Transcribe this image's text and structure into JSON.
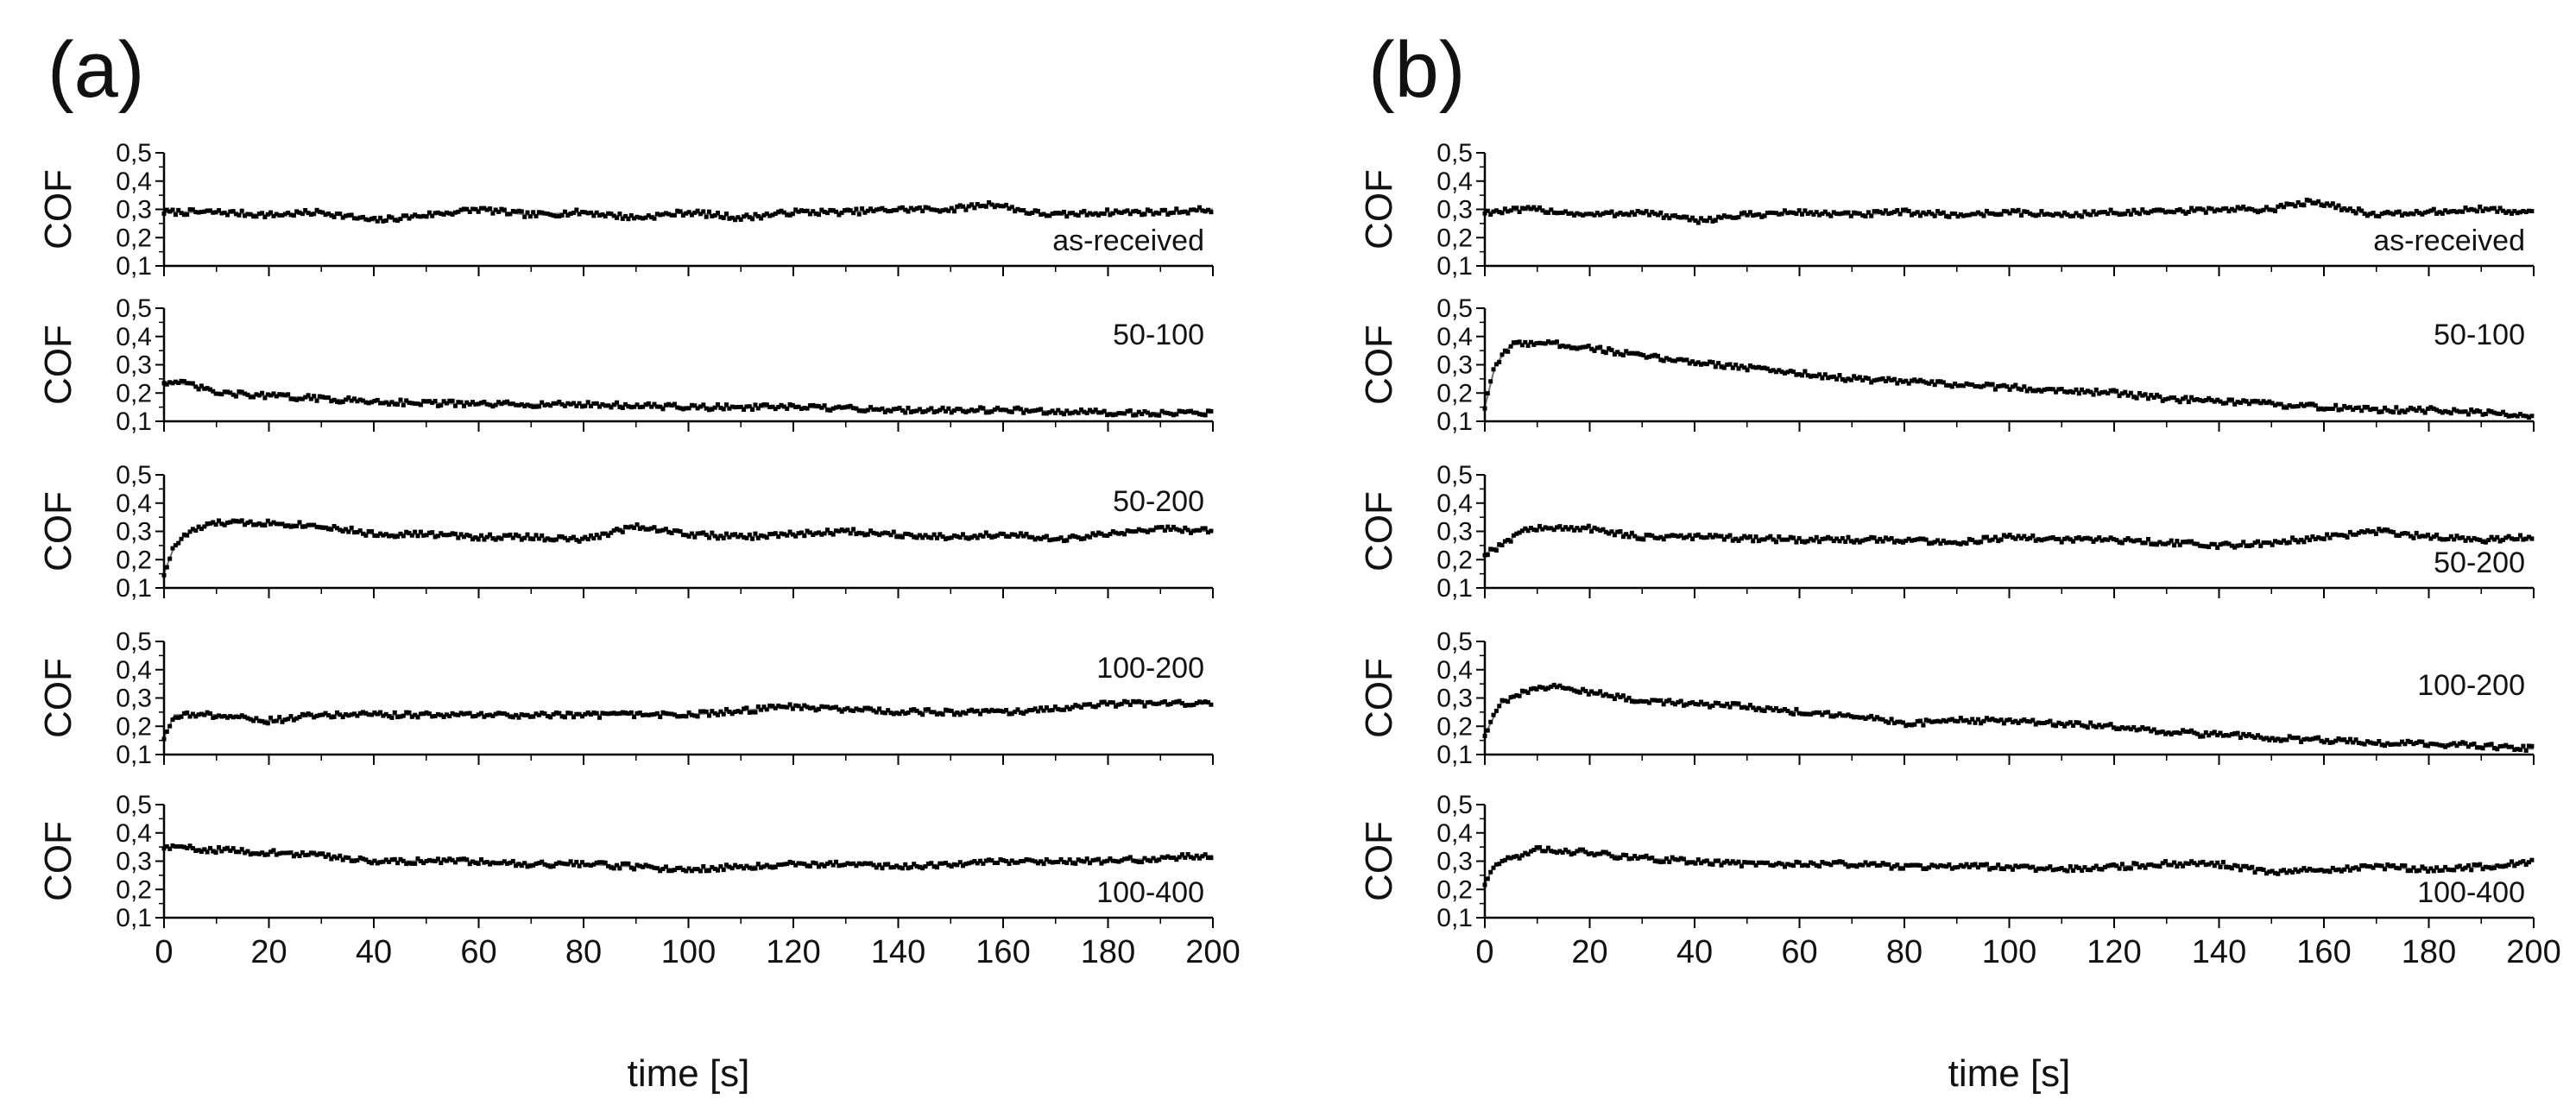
{
  "chart_data": [
    {
      "type": "line",
      "panel_label": "(a)",
      "xlabel": "time [s]",
      "ylabel": "COF",
      "xlim": [
        0,
        200
      ],
      "ylim": [
        0.1,
        0.5
      ],
      "xticks": [
        "0",
        "20",
        "40",
        "60",
        "80",
        "100",
        "120",
        "140",
        "160",
        "180",
        "200"
      ],
      "yticks": [
        "0,1",
        "0,2",
        "0,3",
        "0,4",
        "0,5"
      ],
      "subplots": [
        {
          "label": "as-received",
          "label_pos": "bottom-right",
          "points": [
            [
              0,
              0.29
            ],
            [
              10,
              0.29
            ],
            [
              20,
              0.28
            ],
            [
              30,
              0.29
            ],
            [
              40,
              0.26
            ],
            [
              50,
              0.28
            ],
            [
              60,
              0.3
            ],
            [
              70,
              0.28
            ],
            [
              80,
              0.29
            ],
            [
              90,
              0.27
            ],
            [
              100,
              0.29
            ],
            [
              110,
              0.27
            ],
            [
              120,
              0.29
            ],
            [
              130,
              0.29
            ],
            [
              140,
              0.3
            ],
            [
              150,
              0.3
            ],
            [
              158,
              0.32
            ],
            [
              165,
              0.29
            ],
            [
              170,
              0.28
            ],
            [
              180,
              0.29
            ],
            [
              190,
              0.29
            ],
            [
              200,
              0.3
            ]
          ]
        },
        {
          "label": "50-100",
          "label_pos": "top-right",
          "points": [
            [
              0,
              0.24
            ],
            [
              5,
              0.23
            ],
            [
              10,
              0.2
            ],
            [
              20,
              0.19
            ],
            [
              30,
              0.18
            ],
            [
              40,
              0.17
            ],
            [
              60,
              0.16
            ],
            [
              80,
              0.16
            ],
            [
              100,
              0.15
            ],
            [
              120,
              0.15
            ],
            [
              140,
              0.14
            ],
            [
              160,
              0.14
            ],
            [
              180,
              0.13
            ],
            [
              200,
              0.13
            ]
          ]
        },
        {
          "label": "50-200",
          "label_pos": "top-right",
          "points": [
            [
              0,
              0.15
            ],
            [
              2,
              0.25
            ],
            [
              5,
              0.3
            ],
            [
              10,
              0.33
            ],
            [
              20,
              0.33
            ],
            [
              30,
              0.32
            ],
            [
              40,
              0.29
            ],
            [
              50,
              0.29
            ],
            [
              60,
              0.28
            ],
            [
              70,
              0.28
            ],
            [
              80,
              0.27
            ],
            [
              90,
              0.32
            ],
            [
              100,
              0.29
            ],
            [
              110,
              0.28
            ],
            [
              120,
              0.29
            ],
            [
              130,
              0.3
            ],
            [
              140,
              0.29
            ],
            [
              150,
              0.28
            ],
            [
              160,
              0.29
            ],
            [
              170,
              0.27
            ],
            [
              180,
              0.29
            ],
            [
              190,
              0.31
            ],
            [
              200,
              0.3
            ]
          ]
        },
        {
          "label": "100-200",
          "label_pos": "top-right",
          "points": [
            [
              0,
              0.16
            ],
            [
              2,
              0.24
            ],
            [
              10,
              0.24
            ],
            [
              20,
              0.22
            ],
            [
              30,
              0.24
            ],
            [
              40,
              0.24
            ],
            [
              60,
              0.24
            ],
            [
              80,
              0.24
            ],
            [
              100,
              0.24
            ],
            [
              120,
              0.27
            ],
            [
              140,
              0.25
            ],
            [
              160,
              0.25
            ],
            [
              170,
              0.26
            ],
            [
              180,
              0.28
            ],
            [
              200,
              0.28
            ]
          ]
        },
        {
          "label": "100-400",
          "label_pos": "bottom-right",
          "points": [
            [
              0,
              0.35
            ],
            [
              10,
              0.34
            ],
            [
              20,
              0.33
            ],
            [
              30,
              0.32
            ],
            [
              40,
              0.3
            ],
            [
              50,
              0.3
            ],
            [
              60,
              0.3
            ],
            [
              70,
              0.29
            ],
            [
              80,
              0.29
            ],
            [
              90,
              0.28
            ],
            [
              100,
              0.27
            ],
            [
              110,
              0.28
            ],
            [
              120,
              0.29
            ],
            [
              130,
              0.29
            ],
            [
              140,
              0.28
            ],
            [
              150,
              0.29
            ],
            [
              160,
              0.3
            ],
            [
              170,
              0.3
            ],
            [
              180,
              0.3
            ],
            [
              190,
              0.31
            ],
            [
              200,
              0.32
            ]
          ]
        }
      ]
    },
    {
      "type": "line",
      "panel_label": "(b)",
      "xlabel": "time [s]",
      "ylabel": "COF",
      "xlim": [
        0,
        200
      ],
      "ylim": [
        0.1,
        0.5
      ],
      "xticks": [
        "0",
        "20",
        "40",
        "60",
        "80",
        "100",
        "120",
        "140",
        "160",
        "180",
        "200"
      ],
      "yticks": [
        "0,1",
        "0,2",
        "0,3",
        "0,4",
        "0,5"
      ],
      "subplots": [
        {
          "label": "as-received",
          "label_pos": "bottom-right",
          "points": [
            [
              0,
              0.29
            ],
            [
              10,
              0.3
            ],
            [
              20,
              0.28
            ],
            [
              30,
              0.29
            ],
            [
              40,
              0.26
            ],
            [
              50,
              0.28
            ],
            [
              60,
              0.29
            ],
            [
              70,
              0.28
            ],
            [
              80,
              0.29
            ],
            [
              90,
              0.28
            ],
            [
              100,
              0.29
            ],
            [
              110,
              0.28
            ],
            [
              120,
              0.29
            ],
            [
              130,
              0.29
            ],
            [
              140,
              0.3
            ],
            [
              150,
              0.3
            ],
            [
              158,
              0.33
            ],
            [
              165,
              0.3
            ],
            [
              170,
              0.28
            ],
            [
              180,
              0.29
            ],
            [
              190,
              0.3
            ],
            [
              200,
              0.29
            ]
          ]
        },
        {
          "label": "50-100",
          "label_pos": "top-right",
          "points": [
            [
              0,
              0.15
            ],
            [
              2,
              0.3
            ],
            [
              5,
              0.37
            ],
            [
              10,
              0.38
            ],
            [
              20,
              0.36
            ],
            [
              30,
              0.33
            ],
            [
              40,
              0.31
            ],
            [
              50,
              0.29
            ],
            [
              60,
              0.27
            ],
            [
              70,
              0.25
            ],
            [
              80,
              0.24
            ],
            [
              90,
              0.23
            ],
            [
              100,
              0.22
            ],
            [
              110,
              0.21
            ],
            [
              120,
              0.2
            ],
            [
              130,
              0.18
            ],
            [
              140,
              0.17
            ],
            [
              150,
              0.16
            ],
            [
              160,
              0.15
            ],
            [
              170,
              0.14
            ],
            [
              180,
              0.14
            ],
            [
              190,
              0.13
            ],
            [
              200,
              0.12
            ]
          ]
        },
        {
          "label": "50-200",
          "label_pos": "bottom-right",
          "points": [
            [
              0,
              0.22
            ],
            [
              3,
              0.25
            ],
            [
              8,
              0.31
            ],
            [
              10,
              0.31
            ],
            [
              20,
              0.31
            ],
            [
              30,
              0.28
            ],
            [
              40,
              0.28
            ],
            [
              60,
              0.27
            ],
            [
              80,
              0.27
            ],
            [
              90,
              0.26
            ],
            [
              100,
              0.28
            ],
            [
              110,
              0.27
            ],
            [
              120,
              0.27
            ],
            [
              130,
              0.26
            ],
            [
              140,
              0.25
            ],
            [
              150,
              0.26
            ],
            [
              160,
              0.28
            ],
            [
              170,
              0.3
            ],
            [
              180,
              0.28
            ],
            [
              190,
              0.27
            ],
            [
              200,
              0.28
            ]
          ]
        },
        {
          "label": "100-200",
          "label_pos": "right",
          "points": [
            [
              0,
              0.17
            ],
            [
              3,
              0.28
            ],
            [
              10,
              0.34
            ],
            [
              15,
              0.34
            ],
            [
              20,
              0.32
            ],
            [
              30,
              0.29
            ],
            [
              40,
              0.28
            ],
            [
              50,
              0.27
            ],
            [
              60,
              0.25
            ],
            [
              70,
              0.24
            ],
            [
              80,
              0.21
            ],
            [
              90,
              0.22
            ],
            [
              100,
              0.22
            ],
            [
              110,
              0.21
            ],
            [
              120,
              0.2
            ],
            [
              130,
              0.18
            ],
            [
              140,
              0.17
            ],
            [
              150,
              0.16
            ],
            [
              160,
              0.15
            ],
            [
              170,
              0.14
            ],
            [
              180,
              0.14
            ],
            [
              190,
              0.13
            ],
            [
              200,
              0.12
            ]
          ]
        },
        {
          "label": "100-400",
          "label_pos": "bottom-right",
          "points": [
            [
              0,
              0.22
            ],
            [
              2,
              0.29
            ],
            [
              5,
              0.31
            ],
            [
              10,
              0.34
            ],
            [
              20,
              0.33
            ],
            [
              30,
              0.31
            ],
            [
              40,
              0.3
            ],
            [
              50,
              0.29
            ],
            [
              60,
              0.29
            ],
            [
              70,
              0.29
            ],
            [
              80,
              0.28
            ],
            [
              90,
              0.28
            ],
            [
              100,
              0.28
            ],
            [
              110,
              0.27
            ],
            [
              120,
              0.28
            ],
            [
              130,
              0.29
            ],
            [
              140,
              0.29
            ],
            [
              150,
              0.26
            ],
            [
              160,
              0.27
            ],
            [
              170,
              0.28
            ],
            [
              180,
              0.27
            ],
            [
              190,
              0.28
            ],
            [
              200,
              0.3
            ]
          ]
        }
      ]
    }
  ]
}
